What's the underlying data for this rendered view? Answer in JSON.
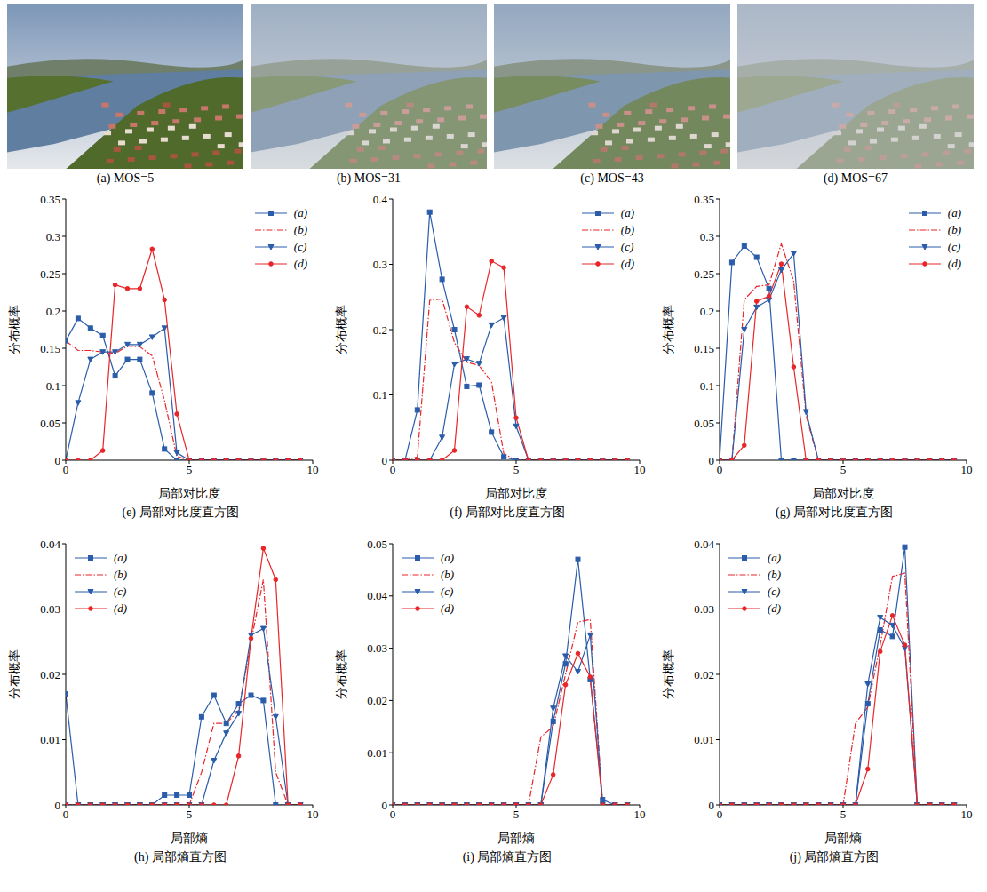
{
  "images": [
    {
      "caption": "(a) MOS=5"
    },
    {
      "caption": "(b) MOS=31"
    },
    {
      "caption": "(c) MOS=43"
    },
    {
      "caption": "(d) MOS=67"
    }
  ],
  "chart_data": [
    {
      "type": "line",
      "title": "(e) 局部对比度直方图",
      "xlabel": "局部对比度",
      "ylabel": "分布概率",
      "x": [
        0,
        0.5,
        1,
        1.5,
        2,
        2.5,
        3,
        3.5,
        4,
        4.5,
        5,
        5.5,
        6,
        6.5,
        7,
        7.5,
        8,
        8.5,
        9,
        9.5
      ],
      "xlim": [
        0,
        10
      ],
      "xticks": [
        0,
        5,
        10
      ],
      "ylim": [
        0,
        0.35
      ],
      "yticks": [
        0,
        0.05,
        0.1,
        0.15,
        0.2,
        0.25,
        0.3,
        0.35
      ],
      "grid": false,
      "legend": "upper right",
      "series": [
        {
          "name": "(a)",
          "color": "#2a5caa",
          "marker": "square",
          "line_style": "solid",
          "values": [
            0.16,
            0.19,
            0.177,
            0.167,
            0.113,
            0.135,
            0.135,
            0.09,
            0.015,
            0,
            0,
            0,
            0,
            0,
            0,
            0,
            0,
            0,
            0,
            0
          ]
        },
        {
          "name": "(b)",
          "color": "#e8262a",
          "marker": "none",
          "line_style": "dashdot",
          "values": [
            0.16,
            0.147,
            0.147,
            0.145,
            0.143,
            0.153,
            0.152,
            0.14,
            0.08,
            0.005,
            0,
            0,
            0,
            0,
            0,
            0,
            0,
            0,
            0,
            0
          ]
        },
        {
          "name": "(c)",
          "color": "#2a5caa",
          "marker": "triangle_down",
          "line_style": "solid",
          "values": [
            0,
            0.077,
            0.135,
            0.145,
            0.145,
            0.155,
            0.155,
            0.165,
            0.177,
            0.01,
            0,
            0,
            0,
            0,
            0,
            0,
            0,
            0,
            0,
            0
          ]
        },
        {
          "name": "(d)",
          "color": "#e8262a",
          "marker": "circle",
          "line_style": "solid",
          "values": [
            0,
            0,
            0,
            0.013,
            0.235,
            0.23,
            0.23,
            0.283,
            0.215,
            0.062,
            0,
            0,
            0,
            0,
            0,
            0,
            0,
            0,
            0,
            0
          ]
        }
      ]
    },
    {
      "type": "line",
      "title": "(f) 局部对比度直方图",
      "xlabel": "局部对比度",
      "ylabel": "分布概率",
      "x": [
        0,
        0.5,
        1,
        1.5,
        2,
        2.5,
        3,
        3.5,
        4,
        4.5,
        5,
        5.5,
        6,
        6.5,
        7,
        7.5,
        8,
        8.5,
        9,
        9.5
      ],
      "xlim": [
        0,
        10
      ],
      "xticks": [
        0,
        5,
        10
      ],
      "ylim": [
        0,
        0.4
      ],
      "yticks": [
        0,
        0.1,
        0.2,
        0.3,
        0.4
      ],
      "grid": false,
      "legend": "upper right",
      "series": [
        {
          "name": "(a)",
          "color": "#2a5caa",
          "marker": "square",
          "line_style": "solid",
          "values": [
            0,
            0,
            0.077,
            0.38,
            0.277,
            0.2,
            0.113,
            0.115,
            0.043,
            0.005,
            0,
            0,
            0,
            0,
            0,
            0,
            0,
            0,
            0,
            0
          ]
        },
        {
          "name": "(b)",
          "color": "#e8262a",
          "marker": "none",
          "line_style": "dashdot",
          "values": [
            0,
            0,
            0.005,
            0.245,
            0.247,
            0.18,
            0.15,
            0.145,
            0.12,
            0.01,
            0,
            0,
            0,
            0,
            0,
            0,
            0,
            0,
            0,
            0
          ]
        },
        {
          "name": "(c)",
          "color": "#2a5caa",
          "marker": "triangle_down",
          "line_style": "solid",
          "values": [
            0,
            0,
            0,
            0,
            0.035,
            0.147,
            0.155,
            0.148,
            0.207,
            0.218,
            0.052,
            0,
            0,
            0,
            0,
            0,
            0,
            0,
            0,
            0
          ]
        },
        {
          "name": "(d)",
          "color": "#e8262a",
          "marker": "circle",
          "line_style": "solid",
          "values": [
            0,
            0,
            0,
            0,
            0,
            0.015,
            0.235,
            0.222,
            0.305,
            0.295,
            0.065,
            0,
            0,
            0,
            0,
            0,
            0,
            0,
            0,
            0
          ]
        }
      ]
    },
    {
      "type": "line",
      "title": "(g) 局部对比度直方图",
      "xlabel": "局部对比度",
      "ylabel": "分布概率",
      "x": [
        0,
        0.5,
        1,
        1.5,
        2,
        2.5,
        3,
        3.5,
        4,
        4.5,
        5,
        5.5,
        6,
        6.5,
        7,
        7.5,
        8,
        8.5,
        9,
        9.5
      ],
      "xlim": [
        0,
        10
      ],
      "xticks": [
        0,
        5,
        10
      ],
      "ylim": [
        0,
        0.35
      ],
      "yticks": [
        0,
        0.05,
        0.1,
        0.15,
        0.2,
        0.25,
        0.3,
        0.35
      ],
      "grid": false,
      "legend": "upper right",
      "series": [
        {
          "name": "(a)",
          "color": "#2a5caa",
          "marker": "square",
          "line_style": "solid",
          "values": [
            0,
            0.265,
            0.287,
            0.272,
            0.23,
            0,
            0,
            0,
            0,
            0,
            0,
            0,
            0,
            0,
            0,
            0,
            0,
            0,
            0,
            0
          ]
        },
        {
          "name": "(b)",
          "color": "#e8262a",
          "marker": "none",
          "line_style": "dashdot",
          "values": [
            0,
            0,
            0.215,
            0.233,
            0.235,
            0.29,
            0.24,
            0.06,
            0,
            0,
            0,
            0,
            0,
            0,
            0,
            0,
            0,
            0,
            0,
            0
          ]
        },
        {
          "name": "(c)",
          "color": "#2a5caa",
          "marker": "triangle_down",
          "line_style": "solid",
          "values": [
            0,
            0,
            0.175,
            0.205,
            0.215,
            0.255,
            0.277,
            0.065,
            0,
            0,
            0,
            0,
            0,
            0,
            0,
            0,
            0,
            0,
            0,
            0
          ]
        },
        {
          "name": "(d)",
          "color": "#e8262a",
          "marker": "circle",
          "line_style": "solid",
          "values": [
            0,
            0,
            0.02,
            0.213,
            0.22,
            0.263,
            0.125,
            0,
            0,
            0,
            0,
            0,
            0,
            0,
            0,
            0,
            0,
            0,
            0,
            0
          ]
        }
      ]
    },
    {
      "type": "line",
      "title": "(h) 局部熵直方图",
      "xlabel": "局部熵",
      "ylabel": "分布概率",
      "x": [
        0,
        0.5,
        1,
        1.5,
        2,
        2.5,
        3,
        3.5,
        4,
        4.5,
        5,
        5.5,
        6,
        6.5,
        7,
        7.5,
        8,
        8.5,
        9,
        9.5
      ],
      "xlim": [
        0,
        10
      ],
      "xticks": [
        0,
        5,
        10
      ],
      "ylim": [
        0,
        0.04
      ],
      "yticks": [
        0,
        0.01,
        0.02,
        0.03,
        0.04
      ],
      "grid": false,
      "legend": "upper left",
      "series": [
        {
          "name": "(a)",
          "color": "#2a5caa",
          "marker": "square",
          "line_style": "solid",
          "values": [
            0.017,
            0,
            0,
            0,
            0,
            0,
            0,
            0,
            0.0015,
            0.0015,
            0.0015,
            0.0135,
            0.0168,
            0.0125,
            0.0155,
            0.0168,
            0.016,
            0,
            0,
            0
          ]
        },
        {
          "name": "(b)",
          "color": "#e8262a",
          "marker": "none",
          "line_style": "dashdot",
          "values": [
            0,
            0,
            0,
            0,
            0,
            0,
            0,
            0,
            0,
            0,
            0,
            0.005,
            0.0125,
            0.0125,
            0.0145,
            0.025,
            0.0345,
            0.005,
            0,
            0
          ]
        },
        {
          "name": "(c)",
          "color": "#2a5caa",
          "marker": "triangle_down",
          "line_style": "solid",
          "values": [
            0,
            0,
            0,
            0,
            0,
            0,
            0,
            0,
            0,
            0,
            0,
            0,
            0.0068,
            0.011,
            0.014,
            0.026,
            0.027,
            0.0135,
            0,
            0
          ]
        },
        {
          "name": "(d)",
          "color": "#e8262a",
          "marker": "circle",
          "line_style": "solid",
          "values": [
            0,
            0,
            0,
            0,
            0,
            0,
            0,
            0,
            0,
            0,
            0,
            0,
            0,
            0,
            0.0075,
            0.0255,
            0.0393,
            0.0345,
            0,
            0
          ]
        }
      ]
    },
    {
      "type": "line",
      "title": "(i) 局部熵直方图",
      "xlabel": "局部熵",
      "ylabel": "分布概率",
      "x": [
        0,
        0.5,
        1,
        1.5,
        2,
        2.5,
        3,
        3.5,
        4,
        4.5,
        5,
        5.5,
        6,
        6.5,
        7,
        7.5,
        8,
        8.5,
        9,
        9.5
      ],
      "xlim": [
        0,
        10
      ],
      "xticks": [
        0,
        5,
        10
      ],
      "ylim": [
        0,
        0.05
      ],
      "yticks": [
        0,
        0.01,
        0.02,
        0.03,
        0.04,
        0.05
      ],
      "grid": false,
      "legend": "upper left",
      "series": [
        {
          "name": "(a)",
          "color": "#2a5caa",
          "marker": "square",
          "line_style": "solid",
          "values": [
            0,
            0,
            0,
            0,
            0,
            0,
            0,
            0,
            0,
            0,
            0,
            0,
            0,
            0.016,
            0.027,
            0.047,
            0.024,
            0.001,
            0,
            0
          ]
        },
        {
          "name": "(b)",
          "color": "#e8262a",
          "marker": "none",
          "line_style": "dashdot",
          "values": [
            0,
            0,
            0,
            0,
            0,
            0,
            0,
            0,
            0,
            0,
            0,
            0,
            0.013,
            0.015,
            0.025,
            0.035,
            0.0355,
            0,
            0,
            0
          ]
        },
        {
          "name": "(c)",
          "color": "#2a5caa",
          "marker": "triangle_down",
          "line_style": "solid",
          "values": [
            0,
            0,
            0,
            0,
            0,
            0,
            0,
            0,
            0,
            0,
            0,
            0,
            0,
            0.0185,
            0.0285,
            0.0255,
            0.0325,
            0,
            0,
            0
          ]
        },
        {
          "name": "(d)",
          "color": "#e8262a",
          "marker": "circle",
          "line_style": "solid",
          "values": [
            0,
            0,
            0,
            0,
            0,
            0,
            0,
            0,
            0,
            0,
            0,
            0,
            0,
            0.0058,
            0.023,
            0.029,
            0.0245,
            0,
            0,
            0
          ]
        }
      ]
    },
    {
      "type": "line",
      "title": "(j) 局部熵直方图",
      "xlabel": "局部熵",
      "ylabel": "分布概率",
      "x": [
        0,
        0.5,
        1,
        1.5,
        2,
        2.5,
        3,
        3.5,
        4,
        4.5,
        5,
        5.5,
        6,
        6.5,
        7,
        7.5,
        8,
        8.5,
        9,
        9.5
      ],
      "xlim": [
        0,
        10
      ],
      "xticks": [
        0,
        5,
        10
      ],
      "ylim": [
        0,
        0.04
      ],
      "yticks": [
        0,
        0.01,
        0.02,
        0.03,
        0.04
      ],
      "grid": false,
      "legend": "upper left",
      "series": [
        {
          "name": "(a)",
          "color": "#2a5caa",
          "marker": "square",
          "line_style": "solid",
          "values": [
            0,
            0,
            0,
            0,
            0,
            0,
            0,
            0,
            0,
            0,
            0,
            0,
            0.0155,
            0.0268,
            0.0258,
            0.0395,
            0,
            0,
            0,
            0
          ]
        },
        {
          "name": "(b)",
          "color": "#e8262a",
          "marker": "none",
          "line_style": "dashdot",
          "values": [
            0,
            0,
            0,
            0,
            0,
            0,
            0,
            0,
            0,
            0,
            0,
            0.0125,
            0.015,
            0.0245,
            0.035,
            0.0355,
            0,
            0,
            0,
            0
          ]
        },
        {
          "name": "(c)",
          "color": "#2a5caa",
          "marker": "triangle_down",
          "line_style": "solid",
          "values": [
            0,
            0,
            0,
            0,
            0,
            0,
            0,
            0,
            0,
            0,
            0,
            0,
            0.0185,
            0.0287,
            0.0275,
            0.024,
            0,
            0,
            0,
            0
          ]
        },
        {
          "name": "(d)",
          "color": "#e8262a",
          "marker": "circle",
          "line_style": "solid",
          "values": [
            0,
            0,
            0,
            0,
            0,
            0,
            0,
            0,
            0,
            0,
            0,
            0,
            0.0055,
            0.0235,
            0.029,
            0.0245,
            0,
            0,
            0,
            0
          ]
        }
      ]
    }
  ]
}
